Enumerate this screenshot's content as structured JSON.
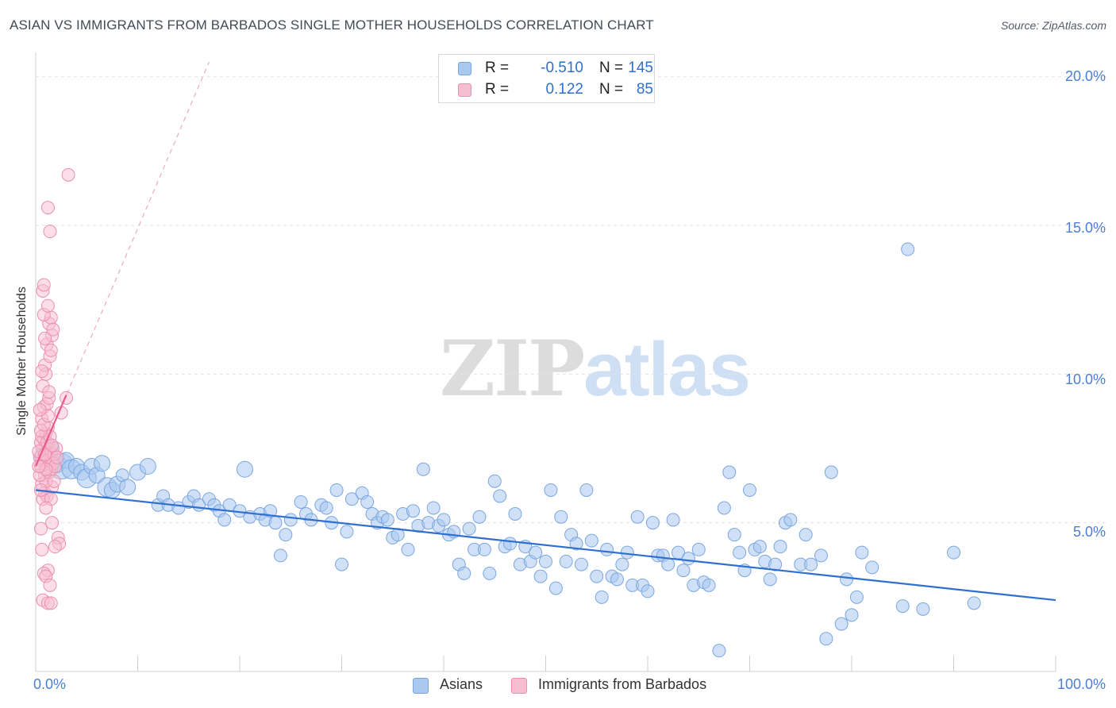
{
  "title": "ASIAN VS IMMIGRANTS FROM BARBADOS SINGLE MOTHER HOUSEHOLDS CORRELATION CHART",
  "source": "Source: ZipAtlas.com",
  "watermark": {
    "part1": "ZIP",
    "part2": "atlas"
  },
  "legend": {
    "rows": [
      {
        "r_label": "R =",
        "r_value": "-0.510",
        "n_label": "N =",
        "n_value": "145",
        "color": "#a9c8f0",
        "border": "#7aa6e0"
      },
      {
        "r_label": "R =",
        "r_value": "0.122",
        "n_label": "N =",
        "n_value": "85",
        "color": "#f7bdd0",
        "border": "#ec8fb0"
      }
    ]
  },
  "bottom_legend": {
    "items": [
      "Asians",
      "Immigrants from Barbados"
    ]
  },
  "chart_data": {
    "type": "scatter",
    "title": "ASIAN VS IMMIGRANTS FROM BARBADOS SINGLE MOTHER HOUSEHOLDS CORRELATION CHART",
    "xlabel": "",
    "ylabel": "Single Mother Households",
    "xlim": [
      0,
      100
    ],
    "ylim": [
      0,
      20.5
    ],
    "x_tick_labels": [
      "0.0%",
      "100.0%"
    ],
    "y_ticks": [
      5,
      10,
      15,
      20
    ],
    "y_tick_labels": [
      "5.0%",
      "10.0%",
      "15.0%",
      "20.0%"
    ],
    "grid": true,
    "legend_placement": "top-center",
    "colors": {
      "asians": "#a9c8f0",
      "asians_line": "#2f6fd0",
      "barbados": "#f7bdd0",
      "barbados_line": "#e8588a"
    },
    "series": [
      {
        "name": "Asians",
        "trend": {
          "x": [
            0,
            100
          ],
          "y": [
            6.1,
            2.4
          ]
        },
        "points": [
          [
            1,
            7.2,
            14
          ],
          [
            1.5,
            7.5,
            10
          ],
          [
            2,
            7.0,
            12
          ],
          [
            2.5,
            6.9,
            16
          ],
          [
            3,
            7.1,
            10
          ],
          [
            3.5,
            6.8,
            12
          ],
          [
            4,
            6.9,
            10
          ],
          [
            4.5,
            6.7,
            10
          ],
          [
            5,
            6.5,
            12
          ],
          [
            5.5,
            6.9,
            10
          ],
          [
            6,
            6.6,
            10
          ],
          [
            6.5,
            7.0,
            10
          ],
          [
            7,
            6.2,
            12
          ],
          [
            7.5,
            6.1,
            10
          ],
          [
            8,
            6.3,
            10
          ],
          [
            8.5,
            6.6,
            8
          ],
          [
            9,
            6.2,
            10
          ],
          [
            10,
            6.7,
            10
          ],
          [
            11,
            6.9,
            10
          ],
          [
            12,
            5.6,
            8
          ],
          [
            12.5,
            5.9,
            8
          ],
          [
            13,
            5.6,
            8
          ],
          [
            14,
            5.5,
            8
          ],
          [
            15,
            5.7,
            8
          ],
          [
            15.5,
            5.9,
            8
          ],
          [
            16,
            5.6,
            8
          ],
          [
            17,
            5.8,
            8
          ],
          [
            17.5,
            5.6,
            8
          ],
          [
            18,
            5.4,
            8
          ],
          [
            18.5,
            5.1,
            8
          ],
          [
            19,
            5.6,
            8
          ],
          [
            20,
            5.4,
            8
          ],
          [
            20.5,
            6.8,
            10
          ],
          [
            21,
            5.2,
            8
          ],
          [
            22,
            5.3,
            8
          ],
          [
            22.5,
            5.1,
            8
          ],
          [
            23,
            5.4,
            8
          ],
          [
            23.5,
            5.0,
            8
          ],
          [
            24,
            3.9,
            8
          ],
          [
            24.5,
            4.6,
            8
          ],
          [
            25,
            5.1,
            8
          ],
          [
            26,
            5.7,
            8
          ],
          [
            26.5,
            5.3,
            8
          ],
          [
            27,
            5.1,
            8
          ],
          [
            28,
            5.6,
            8
          ],
          [
            28.5,
            5.5,
            8
          ],
          [
            29,
            5.0,
            8
          ],
          [
            29.5,
            6.1,
            8
          ],
          [
            30,
            3.6,
            8
          ],
          [
            30.5,
            4.7,
            8
          ],
          [
            31,
            5.8,
            8
          ],
          [
            32,
            6.0,
            8
          ],
          [
            32.5,
            5.7,
            8
          ],
          [
            33,
            5.3,
            8
          ],
          [
            33.5,
            5.0,
            8
          ],
          [
            34,
            5.2,
            8
          ],
          [
            34.5,
            5.1,
            8
          ],
          [
            35,
            4.5,
            8
          ],
          [
            35.5,
            4.6,
            8
          ],
          [
            36,
            5.3,
            8
          ],
          [
            36.5,
            4.1,
            8
          ],
          [
            37,
            5.4,
            8
          ],
          [
            37.5,
            4.9,
            8
          ],
          [
            38,
            6.8,
            8
          ],
          [
            38.5,
            5.0,
            8
          ],
          [
            39,
            5.5,
            8
          ],
          [
            39.5,
            4.9,
            8
          ],
          [
            40,
            5.1,
            8
          ],
          [
            40.5,
            4.6,
            8
          ],
          [
            41,
            4.7,
            8
          ],
          [
            41.5,
            3.6,
            8
          ],
          [
            42,
            3.3,
            8
          ],
          [
            42.5,
            4.8,
            8
          ],
          [
            43,
            4.1,
            8
          ],
          [
            43.5,
            5.2,
            8
          ],
          [
            44,
            4.1,
            8
          ],
          [
            44.5,
            3.3,
            8
          ],
          [
            45,
            6.4,
            8
          ],
          [
            45.5,
            5.9,
            8
          ],
          [
            46,
            4.2,
            8
          ],
          [
            46.5,
            4.3,
            8
          ],
          [
            47,
            5.3,
            8
          ],
          [
            47.5,
            3.6,
            8
          ],
          [
            48,
            4.2,
            8
          ],
          [
            48.5,
            3.7,
            8
          ],
          [
            49,
            4.0,
            8
          ],
          [
            49.5,
            3.2,
            8
          ],
          [
            50,
            3.7,
            8
          ],
          [
            50.5,
            6.1,
            8
          ],
          [
            51,
            2.8,
            8
          ],
          [
            51.5,
            5.2,
            8
          ],
          [
            52,
            3.7,
            8
          ],
          [
            52.5,
            4.6,
            8
          ],
          [
            53,
            4.3,
            8
          ],
          [
            53.5,
            3.6,
            8
          ],
          [
            54,
            6.1,
            8
          ],
          [
            54.5,
            4.4,
            8
          ],
          [
            55,
            3.2,
            8
          ],
          [
            55.5,
            2.5,
            8
          ],
          [
            56,
            4.1,
            8
          ],
          [
            56.5,
            3.2,
            8
          ],
          [
            57,
            3.1,
            8
          ],
          [
            57.5,
            3.6,
            8
          ],
          [
            58,
            4.0,
            8
          ],
          [
            58.5,
            2.9,
            8
          ],
          [
            59,
            5.2,
            8
          ],
          [
            59.5,
            2.9,
            8
          ],
          [
            60,
            2.7,
            8
          ],
          [
            60.5,
            5.0,
            8
          ],
          [
            61,
            3.9,
            8
          ],
          [
            61.5,
            3.9,
            8
          ],
          [
            62,
            3.6,
            8
          ],
          [
            62.5,
            5.1,
            8
          ],
          [
            63,
            4.0,
            8
          ],
          [
            63.5,
            3.4,
            8
          ],
          [
            64,
            3.8,
            8
          ],
          [
            64.5,
            2.9,
            8
          ],
          [
            65,
            4.1,
            8
          ],
          [
            65.5,
            3.0,
            8
          ],
          [
            66,
            2.9,
            8
          ],
          [
            67,
            0.7,
            8
          ],
          [
            67.5,
            5.5,
            8
          ],
          [
            68,
            6.7,
            8
          ],
          [
            68.5,
            4.6,
            8
          ],
          [
            69,
            4.0,
            8
          ],
          [
            69.5,
            3.4,
            8
          ],
          [
            70,
            6.1,
            8
          ],
          [
            70.5,
            4.1,
            8
          ],
          [
            71,
            4.2,
            8
          ],
          [
            71.5,
            3.7,
            8
          ],
          [
            72,
            3.1,
            8
          ],
          [
            72.5,
            3.6,
            8
          ],
          [
            73,
            4.2,
            8
          ],
          [
            73.5,
            5.0,
            8
          ],
          [
            74,
            5.1,
            8
          ],
          [
            75,
            3.6,
            8
          ],
          [
            75.5,
            4.6,
            8
          ],
          [
            76,
            3.6,
            8
          ],
          [
            77,
            3.9,
            8
          ],
          [
            77.5,
            1.1,
            8
          ],
          [
            78,
            6.7,
            8
          ],
          [
            79,
            1.6,
            8
          ],
          [
            79.5,
            3.1,
            8
          ],
          [
            80,
            1.9,
            8
          ],
          [
            80.5,
            2.5,
            8
          ],
          [
            81,
            4.0,
            8
          ],
          [
            82,
            3.5,
            8
          ],
          [
            85,
            2.2,
            8
          ],
          [
            87,
            2.1,
            8
          ],
          [
            90,
            4.0,
            8
          ],
          [
            92,
            2.3,
            8
          ],
          [
            85.5,
            14.2,
            8
          ]
        ]
      },
      {
        "name": "Immigrants from Barbados",
        "trend": {
          "x": [
            0,
            3.0
          ],
          "y": [
            6.9,
            9.3
          ]
        },
        "points": [
          [
            0.8,
            7.8,
            8
          ],
          [
            0.9,
            7.2,
            8
          ],
          [
            1.0,
            7.4,
            8
          ],
          [
            1.1,
            7.0,
            8
          ],
          [
            1.2,
            7.6,
            8
          ],
          [
            1.3,
            6.9,
            8
          ],
          [
            0.6,
            7.1,
            8
          ],
          [
            0.7,
            7.5,
            8
          ],
          [
            1.4,
            7.3,
            8
          ],
          [
            1.5,
            6.8,
            8
          ],
          [
            0.5,
            7.7,
            8
          ],
          [
            0.9,
            6.6,
            8
          ],
          [
            1.0,
            8.0,
            8
          ],
          [
            1.2,
            8.2,
            8
          ],
          [
            0.6,
            8.5,
            8
          ],
          [
            0.8,
            8.9,
            8
          ],
          [
            1.1,
            9.0,
            8
          ],
          [
            1.3,
            9.2,
            8
          ],
          [
            0.7,
            9.6,
            8
          ],
          [
            1.0,
            10.0,
            8
          ],
          [
            0.9,
            10.3,
            8
          ],
          [
            1.4,
            10.6,
            8
          ],
          [
            1.1,
            11.0,
            8
          ],
          [
            1.6,
            11.3,
            8
          ],
          [
            1.3,
            11.7,
            8
          ],
          [
            1.5,
            11.9,
            8
          ],
          [
            0.8,
            12.0,
            8
          ],
          [
            0.7,
            12.8,
            8
          ],
          [
            0.8,
            13.0,
            8
          ],
          [
            1.4,
            14.8,
            8
          ],
          [
            1.2,
            15.6,
            8
          ],
          [
            3.2,
            16.7,
            8
          ],
          [
            0.6,
            6.3,
            8
          ],
          [
            0.9,
            6.0,
            8
          ],
          [
            1.1,
            5.9,
            8
          ],
          [
            1.6,
            6.2,
            8
          ],
          [
            0.7,
            5.8,
            8
          ],
          [
            1.5,
            5.8,
            8
          ],
          [
            0.5,
            4.8,
            8
          ],
          [
            1.6,
            5.0,
            8
          ],
          [
            2.2,
            4.5,
            8
          ],
          [
            2.3,
            4.3,
            8
          ],
          [
            1.9,
            4.2,
            8
          ],
          [
            0.6,
            4.1,
            8
          ],
          [
            1.2,
            3.4,
            8
          ],
          [
            0.8,
            3.3,
            8
          ],
          [
            1.0,
            3.2,
            8
          ],
          [
            1.4,
            2.9,
            8
          ],
          [
            0.7,
            2.4,
            8
          ],
          [
            1.2,
            2.3,
            8
          ],
          [
            1.5,
            2.3,
            8
          ],
          [
            2.5,
            8.7,
            8
          ],
          [
            3.0,
            9.2,
            8
          ],
          [
            1.0,
            6.4,
            8
          ],
          [
            1.2,
            7.1,
            8
          ],
          [
            0.4,
            7.2,
            8
          ],
          [
            0.5,
            6.9,
            8
          ],
          [
            1.8,
            7.3,
            8
          ],
          [
            2.0,
            7.5,
            8
          ],
          [
            1.7,
            7.0,
            8
          ],
          [
            0.4,
            6.6,
            8
          ],
          [
            1.3,
            6.7,
            8
          ],
          [
            1.9,
            6.9,
            8
          ],
          [
            0.3,
            7.4,
            8
          ],
          [
            0.6,
            7.9,
            8
          ],
          [
            1.1,
            7.7,
            8
          ],
          [
            1.4,
            7.9,
            8
          ],
          [
            0.9,
            7.3,
            8
          ],
          [
            1.6,
            7.6,
            8
          ],
          [
            1.0,
            6.8,
            8
          ],
          [
            0.5,
            8.1,
            8
          ],
          [
            0.8,
            8.3,
            8
          ],
          [
            1.2,
            8.6,
            8
          ],
          [
            0.4,
            8.8,
            8
          ],
          [
            1.3,
            9.4,
            8
          ],
          [
            0.6,
            10.1,
            8
          ],
          [
            1.5,
            10.8,
            8
          ],
          [
            1.7,
            11.5,
            8
          ],
          [
            0.9,
            11.2,
            8
          ],
          [
            1.2,
            12.3,
            8
          ],
          [
            0.5,
            6.1,
            8
          ],
          [
            1.8,
            6.4,
            8
          ],
          [
            0.3,
            6.9,
            8
          ],
          [
            2.1,
            7.2,
            8
          ],
          [
            1.0,
            5.5,
            8
          ]
        ]
      }
    ]
  }
}
